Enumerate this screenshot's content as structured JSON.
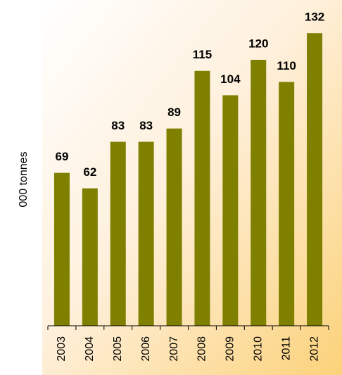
{
  "chart_data": {
    "type": "bar",
    "y_label": "000 tonnes",
    "categories": [
      "2003",
      "2004",
      "2005",
      "2006",
      "2007",
      "2008",
      "2009",
      "2010",
      "2011",
      "2012"
    ],
    "values": [
      69,
      62,
      83,
      83,
      89,
      115,
      104,
      120,
      110,
      132
    ],
    "color": "#7f7f00",
    "ylim": [
      0,
      140
    ],
    "yticks": [],
    "grid": false
  }
}
